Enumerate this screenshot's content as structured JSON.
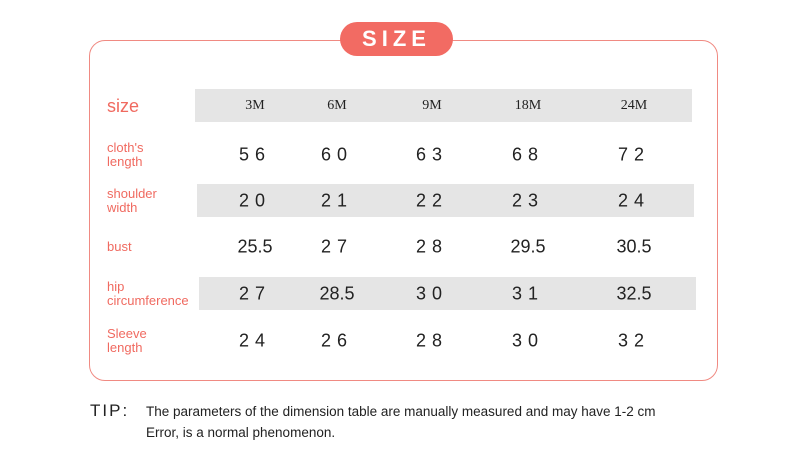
{
  "header": {
    "title": "SIZE"
  },
  "table": {
    "columns": [
      "size",
      "3M",
      "6M",
      "9M",
      "18M",
      "24M"
    ],
    "rows": [
      {
        "label": "cloth's length",
        "values": [
          56,
          60,
          63,
          68,
          72
        ]
      },
      {
        "label": "shoulder width",
        "values": [
          20,
          21,
          22,
          23,
          24
        ]
      },
      {
        "label": "bust",
        "values": [
          25.5,
          27,
          28,
          29.5,
          30.5
        ]
      },
      {
        "label": "hip circumference",
        "values": [
          27,
          28.5,
          30,
          31,
          32.5
        ]
      },
      {
        "label": "Sleeve length",
        "values": [
          24,
          26,
          28,
          30,
          32
        ]
      }
    ]
  },
  "tip": {
    "label": "TIP:",
    "lines": [
      "The parameters of the dimension table are manually measured and may have 1-2 cm",
      "Error, is a normal phenomenon."
    ]
  }
}
